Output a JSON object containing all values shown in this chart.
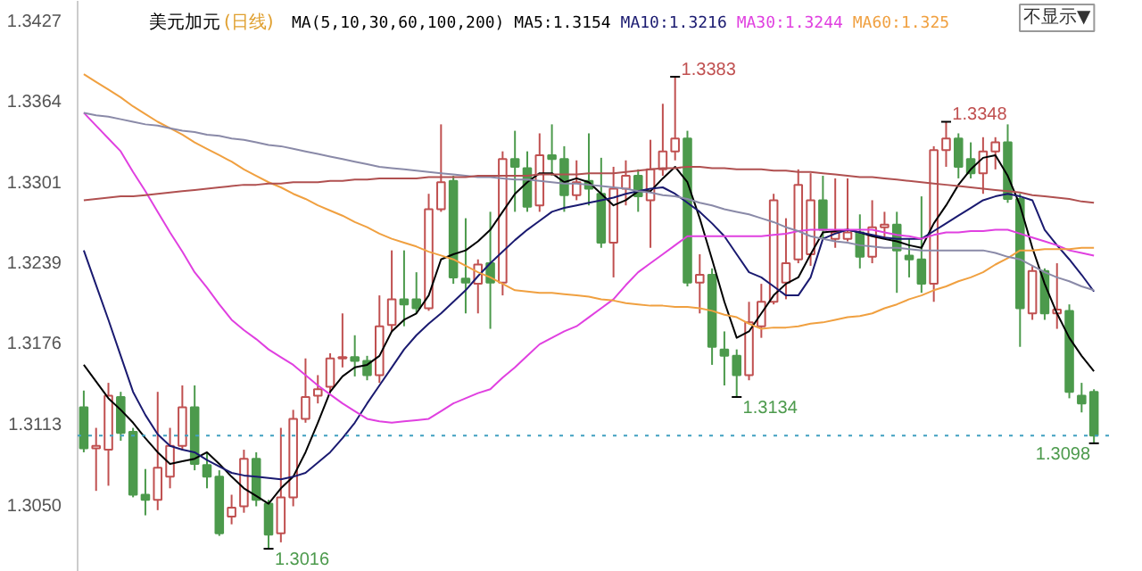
{
  "chart_data": {
    "type": "candlestick",
    "title": "美元加元",
    "subtitle": "(日线)",
    "legend_title": "MA(5,10,30,60,100,200)",
    "annotations": [
      "不显示▼",
      "1.3383",
      "1.3348",
      "1.3134",
      "1.3098",
      "1.3016"
    ],
    "categories": [
      null,
      null,
      null,
      null,
      null,
      null,
      null,
      null,
      null,
      null,
      null,
      null,
      null,
      null,
      null,
      null,
      null,
      null,
      null,
      null,
      null,
      null,
      null,
      null,
      null,
      null,
      null,
      null,
      null,
      null,
      null,
      null,
      null,
      null,
      null,
      null,
      null,
      null,
      null,
      null,
      null,
      null,
      null,
      null,
      null,
      null,
      null,
      null,
      null,
      null,
      null,
      null,
      null,
      null,
      null,
      null,
      null,
      null,
      null,
      null,
      null,
      null,
      null,
      null,
      null,
      null,
      null,
      null,
      null,
      null,
      null,
      null,
      null,
      null,
      null,
      null,
      null,
      null,
      null,
      null,
      null,
      null,
      null
    ],
    "ohlc": [
      [
        1.3126,
        1.3139,
        1.3091,
        1.3094
      ],
      [
        1.3094,
        1.311,
        1.3061,
        1.3096
      ],
      [
        1.3093,
        1.3145,
        1.3065,
        1.3135
      ],
      [
        1.3134,
        1.3138,
        1.31,
        1.3106
      ],
      [
        1.3107,
        1.311,
        1.3056,
        1.3058
      ],
      [
        1.3058,
        1.3078,
        1.3042,
        1.3054
      ],
      [
        1.3054,
        1.3138,
        1.3046,
        1.3079
      ],
      [
        1.3072,
        1.311,
        1.3063,
        1.3096
      ],
      [
        1.3096,
        1.3143,
        1.3093,
        1.3126
      ],
      [
        1.3126,
        1.3143,
        1.3077,
        1.3082
      ],
      [
        1.3081,
        1.3091,
        1.3063,
        1.3072
      ],
      [
        1.3072,
        1.3077,
        1.3026,
        1.3028
      ],
      [
        1.3041,
        1.3058,
        1.3035,
        1.3048
      ],
      [
        1.3049,
        1.3093,
        1.3044,
        1.3086
      ],
      [
        1.3086,
        1.3091,
        1.3049,
        1.3054
      ],
      [
        1.3051,
        1.3054,
        1.3016,
        1.3027
      ],
      [
        1.3028,
        1.311,
        1.3021,
        1.3056
      ],
      [
        1.3056,
        1.3124,
        1.3049,
        1.3117
      ],
      [
        1.3117,
        1.3164,
        1.3114,
        1.3134
      ],
      [
        1.3135,
        1.3151,
        1.3129,
        1.314
      ],
      [
        1.3142,
        1.3168,
        1.3138,
        1.3164
      ],
      [
        1.3164,
        1.3199,
        1.3157,
        1.3165
      ],
      [
        1.3165,
        1.3182,
        1.315,
        1.3162
      ],
      [
        1.3162,
        1.3166,
        1.3147,
        1.3151
      ],
      [
        1.3151,
        1.3213,
        1.3145,
        1.3189
      ],
      [
        1.319,
        1.3248,
        1.3185,
        1.321
      ],
      [
        1.321,
        1.3248,
        1.3189,
        1.3206
      ],
      [
        1.321,
        1.3231,
        1.3199,
        1.3203
      ],
      [
        1.3203,
        1.3292,
        1.3201,
        1.328
      ],
      [
        1.328,
        1.3346,
        1.3278,
        1.3301
      ],
      [
        1.3302,
        1.3306,
        1.3222,
        1.3227
      ],
      [
        1.3226,
        1.3273,
        1.3199,
        1.3223
      ],
      [
        1.3222,
        1.3241,
        1.3199,
        1.3237
      ],
      [
        1.3238,
        1.3278,
        1.3187,
        1.3223
      ],
      [
        1.3223,
        1.3325,
        1.3213,
        1.3319
      ],
      [
        1.3319,
        1.3341,
        1.3278,
        1.3313
      ],
      [
        1.3312,
        1.3325,
        1.3278,
        1.3282
      ],
      [
        1.3283,
        1.3339,
        1.3278,
        1.3322
      ],
      [
        1.3322,
        1.3346,
        1.3306,
        1.3319
      ],
      [
        1.3319,
        1.3329,
        1.3278,
        1.3291
      ],
      [
        1.3291,
        1.3318,
        1.3287,
        1.3301
      ],
      [
        1.3302,
        1.3339,
        1.3283,
        1.3296
      ],
      [
        1.3292,
        1.332,
        1.325,
        1.3254
      ],
      [
        1.3254,
        1.3313,
        1.3227,
        1.3296
      ],
      [
        1.3296,
        1.3318,
        1.3283,
        1.3306
      ],
      [
        1.3306,
        1.3311,
        1.3278,
        1.329
      ],
      [
        1.3287,
        1.3334,
        1.325,
        1.3311
      ],
      [
        1.3311,
        1.3362,
        1.3306,
        1.3325
      ],
      [
        1.3325,
        1.3383,
        1.3318,
        1.3335
      ],
      [
        1.3335,
        1.3341,
        1.322,
        1.3223
      ],
      [
        1.3223,
        1.3245,
        1.3199,
        1.3229
      ],
      [
        1.3229,
        1.3234,
        1.3159,
        1.3173
      ],
      [
        1.3171,
        1.3185,
        1.3143,
        1.3166
      ],
      [
        1.3166,
        1.3171,
        1.3134,
        1.3151
      ],
      [
        1.3151,
        1.3208,
        1.3147,
        1.3192
      ],
      [
        1.3189,
        1.3222,
        1.318,
        1.3208
      ],
      [
        1.3208,
        1.3292,
        1.3206,
        1.3287
      ],
      [
        1.3223,
        1.3273,
        1.321,
        1.3238
      ],
      [
        1.3241,
        1.3311,
        1.3238,
        1.3299
      ],
      [
        1.3245,
        1.3308,
        1.3236,
        1.3287
      ],
      [
        1.3287,
        1.3306,
        1.3257,
        1.3264
      ],
      [
        1.3257,
        1.3304,
        1.325,
        1.3262
      ],
      [
        1.3257,
        1.3304,
        1.3255,
        1.3262
      ],
      [
        1.3262,
        1.3276,
        1.3234,
        1.3243
      ],
      [
        1.3243,
        1.3287,
        1.3238,
        1.3266
      ],
      [
        1.3266,
        1.3278,
        1.3257,
        1.3268
      ],
      [
        1.3268,
        1.3278,
        1.3215,
        1.3248
      ],
      [
        1.3244,
        1.3257,
        1.3227,
        1.3241
      ],
      [
        1.3241,
        1.329,
        1.3215,
        1.3222
      ],
      [
        1.3222,
        1.3329,
        1.3208,
        1.3326
      ],
      [
        1.3326,
        1.3348,
        1.3313,
        1.3335
      ],
      [
        1.3335,
        1.3339,
        1.3304,
        1.3313
      ],
      [
        1.3319,
        1.3332,
        1.3304,
        1.3308
      ],
      [
        1.3308,
        1.3336,
        1.3292,
        1.3325
      ],
      [
        1.3325,
        1.3336,
        1.3311,
        1.3332
      ],
      [
        1.3332,
        1.3346,
        1.3285,
        1.3288
      ],
      [
        1.3288,
        1.3292,
        1.3173,
        1.3203
      ],
      [
        1.3199,
        1.3236,
        1.3194,
        1.3232
      ],
      [
        1.3232,
        1.3234,
        1.3194,
        1.3199
      ],
      [
        1.3199,
        1.3238,
        1.3187,
        1.3202
      ],
      [
        1.3201,
        1.3206,
        1.3133,
        1.3138
      ],
      [
        1.3135,
        1.3145,
        1.3122,
        1.3129
      ],
      [
        1.3138,
        1.314,
        1.3098,
        1.3104
      ]
    ],
    "series": [
      {
        "type": "line",
        "name": "MA5:1.3154",
        "color": "#000000",
        "values": [
          1.3159,
          1.3146,
          1.3133,
          1.3124,
          1.3114,
          1.3102,
          1.3091,
          1.3082,
          1.3084,
          1.3086,
          1.3091,
          1.3082,
          1.3072,
          1.3063,
          1.3057,
          1.3051,
          1.3063,
          1.3072,
          1.3091,
          1.3114,
          1.3138,
          1.315,
          1.3157,
          1.3159,
          1.3166,
          1.3185,
          1.3194,
          1.3199,
          1.3213,
          1.3241,
          1.3245,
          1.3248,
          1.3255,
          1.3264,
          1.3278,
          1.3292,
          1.3301,
          1.3308,
          1.3308,
          1.3301,
          1.3304,
          1.3301,
          1.3292,
          1.3283,
          1.3287,
          1.3294,
          1.3294,
          1.3304,
          1.3313,
          1.3301,
          1.3273,
          1.3241,
          1.3208,
          1.318,
          1.3185,
          1.3199,
          1.3213,
          1.3222,
          1.3227,
          1.3245,
          1.3262,
          1.3263,
          1.3264,
          1.3262,
          1.3259,
          1.3257,
          1.3255,
          1.3252,
          1.325,
          1.3269,
          1.3283,
          1.3299,
          1.3311,
          1.332,
          1.3322,
          1.3306,
          1.3283,
          1.325,
          1.3222,
          1.3199,
          1.318,
          1.3166,
          1.3154
        ]
      },
      {
        "type": "line",
        "name": "MA10:1.3216",
        "color": "#1a1a70",
        "values": [
          1.3248,
          1.3221,
          1.3194,
          1.3166,
          1.3138,
          1.312,
          1.3105,
          1.3096,
          1.3093,
          1.3091,
          1.3085,
          1.308,
          1.3075,
          1.3073,
          1.3072,
          1.3071,
          1.307,
          1.3072,
          1.3075,
          1.3083,
          1.3091,
          1.3102,
          1.3114,
          1.3129,
          1.3143,
          1.3157,
          1.3171,
          1.3182,
          1.3191,
          1.3199,
          1.3208,
          1.3217,
          1.3228,
          1.3238,
          1.3247,
          1.3256,
          1.3264,
          1.3271,
          1.3278,
          1.3281,
          1.3283,
          1.3285,
          1.3287,
          1.3289,
          1.3292,
          1.3294,
          1.3296,
          1.3297,
          1.3292,
          1.3285,
          1.3278,
          1.3269,
          1.3259,
          1.3245,
          1.3231,
          1.3227,
          1.322,
          1.3213,
          1.3213,
          1.3227,
          1.3257,
          1.3261,
          1.3264,
          1.3262,
          1.326,
          1.3258,
          1.3257,
          1.3257,
          1.3257,
          1.3263,
          1.3269,
          1.3275,
          1.3281,
          1.3287,
          1.329,
          1.3292,
          1.329,
          1.3287,
          1.3264,
          1.3252,
          1.3241,
          1.3229,
          1.3216
        ]
      },
      {
        "type": "line",
        "name": "MA30:1.3244",
        "color": "#e040e0",
        "values": [
          1.3355,
          1.3345,
          1.3335,
          1.3325,
          1.3309,
          1.3294,
          1.3278,
          1.3262,
          1.3247,
          1.3231,
          1.3219,
          1.3206,
          1.3194,
          1.3186,
          1.3179,
          1.3171,
          1.3165,
          1.3159,
          1.3151,
          1.3143,
          1.3136,
          1.3129,
          1.3123,
          1.3117,
          1.3115,
          1.3114,
          1.3115,
          1.3116,
          1.3117,
          1.3123,
          1.3129,
          1.3133,
          1.3137,
          1.314,
          1.3149,
          1.3157,
          1.3166,
          1.3175,
          1.318,
          1.3185,
          1.3189,
          1.3196,
          1.3203,
          1.321,
          1.3221,
          1.3231,
          1.3238,
          1.3245,
          1.3252,
          1.3259,
          1.3259,
          1.3259,
          1.3259,
          1.3259,
          1.3259,
          1.3259,
          1.326,
          1.3261,
          1.3263,
          1.3264,
          1.3264,
          1.3264,
          1.3264,
          1.3264,
          1.3264,
          1.3262,
          1.326,
          1.3259,
          1.3257,
          1.326,
          1.3262,
          1.3262,
          1.3263,
          1.3263,
          1.3264,
          1.3264,
          1.3261,
          1.3258,
          1.3255,
          1.3252,
          1.3248,
          1.3246,
          1.3244
        ]
      },
      {
        "type": "line",
        "name": "MA60:1.325",
        "color": "#f0a040",
        "values": [
          1.3385,
          1.3379,
          1.3373,
          1.3367,
          1.336,
          1.3354,
          1.3348,
          1.3343,
          1.3338,
          1.3332,
          1.3327,
          1.3322,
          1.3317,
          1.3311,
          1.3306,
          1.3301,
          1.3297,
          1.3292,
          1.3288,
          1.3283,
          1.3279,
          1.3275,
          1.327,
          1.3266,
          1.3261,
          1.3257,
          1.3254,
          1.3251,
          1.3247,
          1.3244,
          1.3241,
          1.3236,
          1.3231,
          1.3227,
          1.3222,
          1.3217,
          1.3216,
          1.3215,
          1.3215,
          1.3214,
          1.3213,
          1.3212,
          1.321,
          1.3209,
          1.3207,
          1.3206,
          1.3205,
          1.3205,
          1.3204,
          1.3204,
          1.3203,
          1.3201,
          1.3198,
          1.3196,
          1.3191,
          1.3187,
          1.3188,
          1.3188,
          1.3189,
          1.3191,
          1.3192,
          1.3194,
          1.3196,
          1.3197,
          1.3199,
          1.3203,
          1.3206,
          1.321,
          1.3213,
          1.3217,
          1.322,
          1.3224,
          1.3227,
          1.3231,
          1.3237,
          1.3242,
          1.3248,
          1.3248,
          1.3249,
          1.3249,
          1.3249,
          1.325,
          1.325
        ]
      },
      {
        "type": "line",
        "color": "#8a8aa8",
        "values": [
          1.3355,
          1.3353,
          1.3352,
          1.335,
          1.3348,
          1.3346,
          1.3345,
          1.3343,
          1.3341,
          1.334,
          1.3338,
          1.3337,
          1.3335,
          1.3334,
          1.3332,
          1.333,
          1.3329,
          1.3327,
          1.3325,
          1.3323,
          1.3321,
          1.3319,
          1.3317,
          1.3315,
          1.3313,
          1.3312,
          1.3311,
          1.331,
          1.3309,
          1.3308,
          1.3307,
          1.3306,
          1.3305,
          1.3305,
          1.3304,
          1.3303,
          1.3303,
          1.3302,
          1.3301,
          1.33,
          1.33,
          1.3299,
          1.3298,
          1.3297,
          1.3296,
          1.3294,
          1.3293,
          1.3291,
          1.329,
          1.3288,
          1.3285,
          1.3283,
          1.328,
          1.3278,
          1.3276,
          1.3273,
          1.327,
          1.3266,
          1.3263,
          1.3259,
          1.3257,
          1.3255,
          1.3254,
          1.3252,
          1.3251,
          1.325,
          1.325,
          1.3249,
          1.3248,
          1.3248,
          1.3248,
          1.3248,
          1.3248,
          1.3248,
          1.3246,
          1.3243,
          1.3241,
          1.3236,
          1.3231,
          1.3227,
          1.3224,
          1.322,
          1.3217
        ]
      },
      {
        "type": "line",
        "color": "#b05050",
        "values": [
          1.3287,
          1.3288,
          1.3289,
          1.329,
          1.329,
          1.3291,
          1.3292,
          1.3293,
          1.3294,
          1.3295,
          1.3296,
          1.3297,
          1.3298,
          1.3299,
          1.3299,
          1.33,
          1.33,
          1.3301,
          1.3301,
          1.3301,
          1.3302,
          1.3302,
          1.3303,
          1.3303,
          1.3304,
          1.3304,
          1.3304,
          1.3304,
          1.3305,
          1.3305,
          1.3305,
          1.3305,
          1.3306,
          1.3306,
          1.3306,
          1.3306,
          1.3306,
          1.3307,
          1.3307,
          1.3307,
          1.3307,
          1.3308,
          1.3308,
          1.3308,
          1.3309,
          1.331,
          1.3311,
          1.3312,
          1.3312,
          1.3313,
          1.3313,
          1.3312,
          1.3312,
          1.3311,
          1.3311,
          1.3311,
          1.331,
          1.331,
          1.3309,
          1.3309,
          1.3308,
          1.3307,
          1.3306,
          1.3305,
          1.3305,
          1.3304,
          1.3303,
          1.3302,
          1.3301,
          1.33,
          1.3299,
          1.3298,
          1.3297,
          1.3296,
          1.3295,
          1.3294,
          1.3293,
          1.3291,
          1.329,
          1.3289,
          1.3288,
          1.3286,
          1.3285
        ]
      }
    ],
    "ref_lines": [
      {
        "axis": "y",
        "value": 1.3104,
        "color": "#40a0c0",
        "line_style": "dotted"
      }
    ],
    "ylim": [
      1.2998,
      1.3442
    ],
    "yticks": [
      {
        "value": 1.305,
        "label": "1.3050"
      },
      {
        "value": 1.3113,
        "label": "1.3113"
      },
      {
        "value": 1.3176,
        "label": "1.3176"
      },
      {
        "value": 1.3239,
        "label": "1.3239"
      },
      {
        "value": 1.3301,
        "label": "1.3301"
      },
      {
        "value": 1.3364,
        "label": "1.3364"
      },
      {
        "value": 1.3427,
        "label": "1.3427"
      }
    ],
    "tick_labels": "y",
    "grid": false,
    "legend": "top"
  }
}
